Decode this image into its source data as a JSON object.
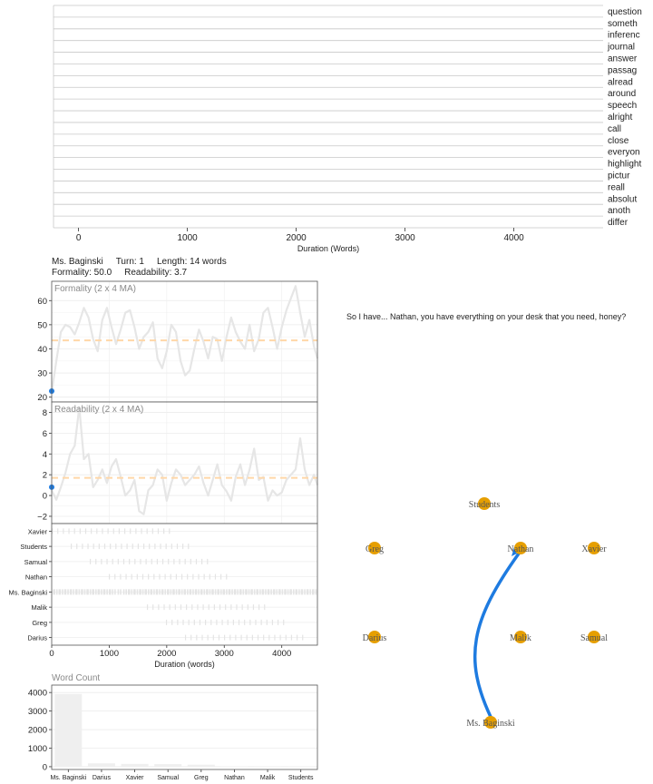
{
  "top_chart": {
    "xlabel": "Duration (Words)",
    "x_ticks": [
      0,
      1000,
      2000,
      3000,
      4000
    ],
    "x_range": [
      -230,
      4820
    ],
    "words": [
      "question",
      "someth",
      "inferenc",
      "journal",
      "answer",
      "passag",
      "alread",
      "around",
      "speech",
      "alright",
      "call",
      "close",
      "everyon",
      "highlight",
      "pictur",
      "reall",
      "absolut",
      "anoth",
      "differ"
    ]
  },
  "turn_info": {
    "speaker": "Ms. Baginski",
    "turn": "Turn: 1",
    "length": "Length: 14 words",
    "formality": "Formality: 50.0",
    "readability": "Readability: 3.7"
  },
  "formality_chart": {
    "title": "Formality (2 x 4 MA)",
    "y_ticks": [
      20,
      30,
      40,
      50,
      60
    ],
    "y_range": [
      18,
      68
    ],
    "x_range": [
      0,
      4620
    ],
    "mean": 43.5,
    "current_point": [
      0,
      22.5
    ],
    "line": [
      [
        0,
        22
      ],
      [
        80,
        35
      ],
      [
        160,
        47
      ],
      [
        240,
        50
      ],
      [
        320,
        49
      ],
      [
        400,
        46
      ],
      [
        480,
        51
      ],
      [
        560,
        57
      ],
      [
        640,
        53
      ],
      [
        720,
        44
      ],
      [
        800,
        39
      ],
      [
        880,
        52
      ],
      [
        960,
        57
      ],
      [
        1040,
        49
      ],
      [
        1120,
        42
      ],
      [
        1200,
        48
      ],
      [
        1280,
        55
      ],
      [
        1360,
        56
      ],
      [
        1440,
        49
      ],
      [
        1520,
        40
      ],
      [
        1600,
        45
      ],
      [
        1680,
        47
      ],
      [
        1760,
        51
      ],
      [
        1840,
        36
      ],
      [
        1920,
        32
      ],
      [
        2000,
        39
      ],
      [
        2080,
        50
      ],
      [
        2160,
        47
      ],
      [
        2240,
        35
      ],
      [
        2320,
        29
      ],
      [
        2400,
        31
      ],
      [
        2480,
        40
      ],
      [
        2560,
        48
      ],
      [
        2640,
        43
      ],
      [
        2720,
        36
      ],
      [
        2800,
        45
      ],
      [
        2880,
        44
      ],
      [
        2960,
        35
      ],
      [
        3040,
        45
      ],
      [
        3120,
        53
      ],
      [
        3200,
        47
      ],
      [
        3280,
        43
      ],
      [
        3360,
        40
      ],
      [
        3440,
        50
      ],
      [
        3520,
        39
      ],
      [
        3600,
        44
      ],
      [
        3680,
        55
      ],
      [
        3760,
        57
      ],
      [
        3840,
        49
      ],
      [
        3920,
        40
      ],
      [
        4000,
        49
      ],
      [
        4080,
        56
      ],
      [
        4160,
        61
      ],
      [
        4240,
        66
      ],
      [
        4320,
        55
      ],
      [
        4400,
        45
      ],
      [
        4480,
        52
      ],
      [
        4560,
        41
      ],
      [
        4620,
        36
      ]
    ]
  },
  "readability_chart": {
    "title": "Readability (2 x 4 MA)",
    "y_ticks": [
      -2,
      0,
      2,
      4,
      6,
      8
    ],
    "y_range": [
      -2.7,
      9
    ],
    "x_range": [
      0,
      4620
    ],
    "mean": 1.7,
    "current_point": [
      0,
      0.8
    ],
    "line": [
      [
        0,
        0.5
      ],
      [
        80,
        -0.4
      ],
      [
        160,
        0.8
      ],
      [
        240,
        2.2
      ],
      [
        320,
        4
      ],
      [
        400,
        4.8
      ],
      [
        480,
        8.5
      ],
      [
        560,
        3.5
      ],
      [
        640,
        4
      ],
      [
        720,
        0.8
      ],
      [
        800,
        1.5
      ],
      [
        880,
        2.5
      ],
      [
        960,
        1.2
      ],
      [
        1040,
        2.8
      ],
      [
        1120,
        3.5
      ],
      [
        1200,
        1.8
      ],
      [
        1280,
        0
      ],
      [
        1360,
        0.5
      ],
      [
        1440,
        1.5
      ],
      [
        1520,
        -1.5
      ],
      [
        1600,
        -1.8
      ],
      [
        1680,
        0.5
      ],
      [
        1760,
        1
      ],
      [
        1840,
        2.5
      ],
      [
        1920,
        2
      ],
      [
        2000,
        -0.5
      ],
      [
        2080,
        1.2
      ],
      [
        2160,
        2.5
      ],
      [
        2240,
        2
      ],
      [
        2320,
        1
      ],
      [
        2400,
        1.5
      ],
      [
        2480,
        2
      ],
      [
        2560,
        2.8
      ],
      [
        2640,
        1.2
      ],
      [
        2720,
        0
      ],
      [
        2800,
        1.5
      ],
      [
        2880,
        3
      ],
      [
        2960,
        1
      ],
      [
        3040,
        0.4
      ],
      [
        3120,
        -0.5
      ],
      [
        3200,
        1.8
      ],
      [
        3280,
        3
      ],
      [
        3360,
        1
      ],
      [
        3440,
        2.5
      ],
      [
        3520,
        4.5
      ],
      [
        3600,
        1.5
      ],
      [
        3680,
        1.8
      ],
      [
        3760,
        -0.5
      ],
      [
        3840,
        0.5
      ],
      [
        3920,
        0
      ],
      [
        4000,
        0.3
      ],
      [
        4080,
        1.5
      ],
      [
        4160,
        2
      ],
      [
        4240,
        2.5
      ],
      [
        4320,
        5.5
      ],
      [
        4400,
        2.5
      ],
      [
        4480,
        1
      ],
      [
        4560,
        2
      ],
      [
        4620,
        1
      ]
    ]
  },
  "speaker_timeline": {
    "xlabel": "Duration (words)",
    "x_ticks": [
      0,
      1000,
      2000,
      3000,
      4000
    ],
    "x_range": [
      0,
      4620
    ],
    "speakers": [
      "Xavier",
      "Students",
      "Samual",
      "Nathan",
      "Ms. Baginski",
      "Malik",
      "Greg",
      "Darius"
    ]
  },
  "word_count_chart": {
    "type": "bar",
    "title": "Word Count",
    "categories": [
      "Ms. Baginski",
      "Darius",
      "Xavier",
      "Samual",
      "Greg",
      "Nathan",
      "Malik",
      "Students"
    ],
    "values": [
      3920,
      180,
      150,
      140,
      110,
      20,
      15,
      10
    ],
    "y_ticks": [
      0,
      1000,
      2000,
      3000,
      4000
    ],
    "y_range": [
      -150,
      4400
    ]
  },
  "current_utterance": "So I have... Nathan, you have everything on your desk that you need, honey?",
  "network": {
    "nodes": [
      {
        "name": "Students",
        "color": "#E69F00"
      },
      {
        "name": "Greg",
        "color": "#E69F00"
      },
      {
        "name": "Nathan",
        "color": "#E69F00"
      },
      {
        "name": "Xavier",
        "color": "#E69F00"
      },
      {
        "name": "Darius",
        "color": "#E69F00"
      },
      {
        "name": "Malik",
        "color": "#E69F00"
      },
      {
        "name": "Samual",
        "color": "#E69F00"
      },
      {
        "name": "Ms. Baginski",
        "color": "#E69F00"
      }
    ],
    "edge": {
      "from": "Ms. Baginski",
      "to": "Nathan",
      "color": "#1E7BE0"
    }
  },
  "colors": {
    "line_gray": "#e6e6e6",
    "mean_orange": "#ffd7a8",
    "point_blue": "#1E7BE0",
    "node_orange": "#E69F00",
    "bar_fill": "#efefef"
  }
}
